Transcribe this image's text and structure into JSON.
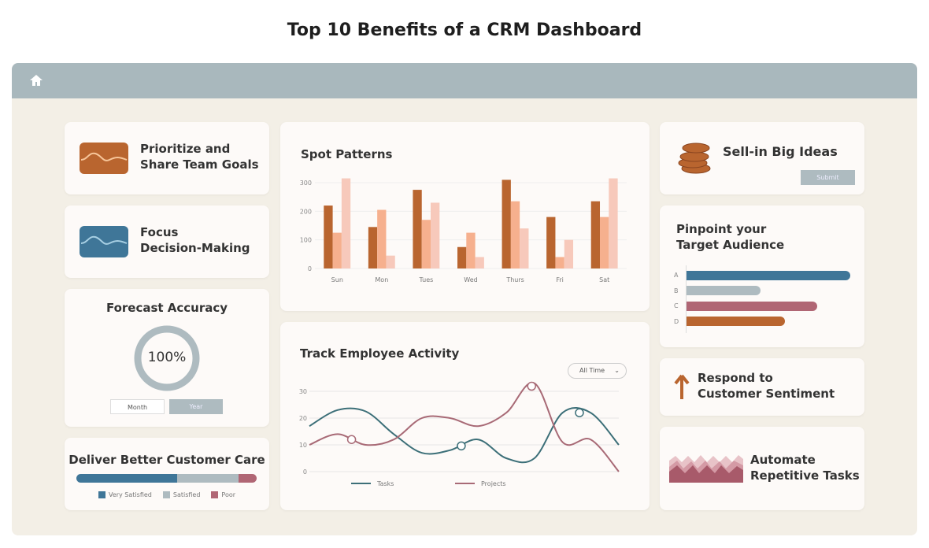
{
  "title": "Top 10 Benefits of a CRM Dashboard",
  "icons": {
    "home": "home-icon",
    "coins": "coins-icon",
    "arrow": "arrow-up-icon"
  },
  "cards": {
    "goals": {
      "title_1": "Prioritize and",
      "title_2": "Share Team Goals"
    },
    "decision": {
      "title_1": "Focus",
      "title_2": "Decision-Making"
    },
    "forecast": {
      "title": "Forecast Accuracy",
      "value": "100%",
      "progress": 1.0,
      "month": "Month",
      "year": "Year"
    },
    "care": {
      "title": "Deliver Better Customer Care",
      "segments": [
        {
          "label": "Very Satisfied",
          "value": 56,
          "color": "#3f7698"
        },
        {
          "label": "Satisfied",
          "value": 34,
          "color": "#aebbc0"
        },
        {
          "label": "Poor",
          "value": 10,
          "color": "#b06674"
        }
      ]
    },
    "patterns": {
      "title": "Spot Patterns"
    },
    "activity": {
      "title": "Track Employee Activity",
      "filter": "All Time"
    },
    "ideas": {
      "title": "Sell-in Big Ideas",
      "submit": "Submit"
    },
    "audience": {
      "title_1": "Pinpoint your",
      "title_2": "Target Audience",
      "bars": [
        {
          "label": "A",
          "value": 100,
          "color": "#3f7698"
        },
        {
          "label": "B",
          "value": 45,
          "color": "#aebbc0"
        },
        {
          "label": "C",
          "value": 80,
          "color": "#b06674"
        },
        {
          "label": "D",
          "value": 60,
          "color": "#b9652f"
        }
      ]
    },
    "sentiment": {
      "title_1": "Respond to",
      "title_2": "Customer Sentiment"
    },
    "automate": {
      "title_1": "Automate",
      "title_2": "Repetitive Tasks"
    }
  },
  "chart_data": [
    {
      "type": "bar",
      "categories": [
        "Sun",
        "Mon",
        "Tues",
        "Wed",
        "Thurs",
        "Fri",
        "Sat"
      ],
      "ylim": [
        0,
        300
      ],
      "yticks": [
        "0",
        "100",
        "200",
        "300"
      ],
      "series": [
        {
          "values": [
            220,
            145,
            275,
            75,
            310,
            180,
            235
          ],
          "color": "#b9652f"
        },
        {
          "values": [
            125,
            205,
            170,
            125,
            235,
            40,
            180
          ],
          "color": "#f6b08e"
        },
        {
          "values": [
            315,
            45,
            230,
            40,
            140,
            100,
            315
          ],
          "color": "#f7c9bb"
        }
      ]
    },
    {
      "type": "line",
      "ylim": [
        0,
        30
      ],
      "yticks": [
        "0",
        "10",
        "20",
        "30"
      ],
      "series": [
        {
          "name": "Tasks",
          "color": "#3c6f78",
          "values": [
            17,
            23,
            22.5,
            14,
            7,
            8,
            12,
            5,
            5,
            22,
            22,
            10
          ],
          "markers": [
            5.4,
            9.6
          ]
        },
        {
          "name": "Projects",
          "color": "#a86a76",
          "values": [
            10,
            14,
            10,
            12,
            20,
            20,
            17,
            22,
            33,
            11,
            12,
            0
          ],
          "markers": [
            1.5,
            7.9
          ]
        }
      ]
    }
  ]
}
